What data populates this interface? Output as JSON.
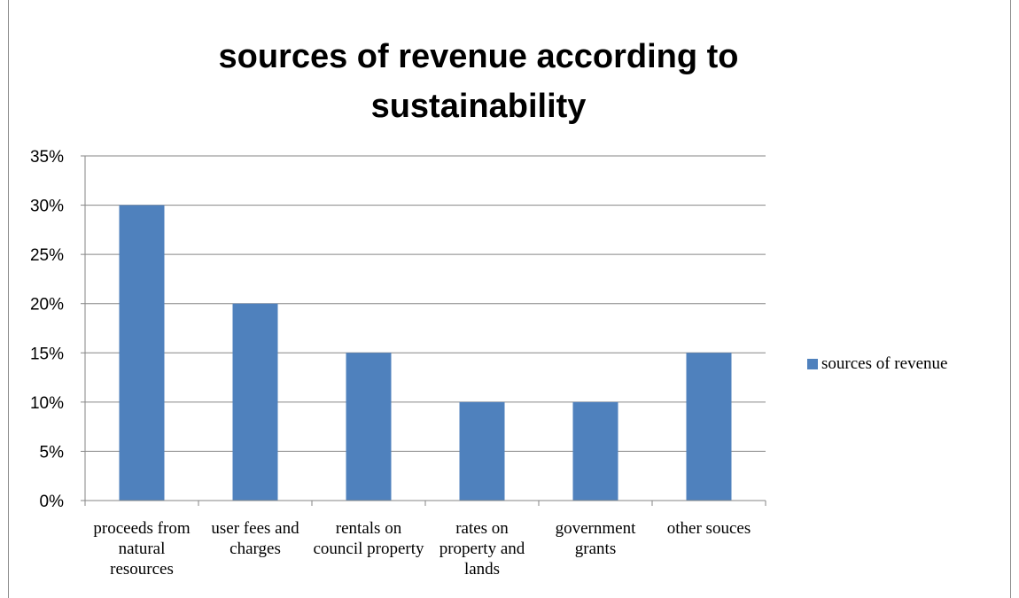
{
  "chart_data": {
    "type": "bar",
    "title": "sources of revenue according to sustainability",
    "categories": [
      "proceeds from natural resources",
      "user fees and charges",
      "rentals on council property",
      "rates  on property and lands",
      "government grants",
      "other  souces"
    ],
    "series": [
      {
        "name": "sources of revenue",
        "values": [
          30,
          20,
          15,
          10,
          10,
          15
        ]
      }
    ],
    "ylim": [
      0,
      35
    ],
    "yticks": [
      "0%",
      "5%",
      "10%",
      "15%",
      "20%",
      "25%",
      "30%",
      "35%"
    ],
    "grid": true,
    "legend": "right",
    "bar_color": "#4f81bd",
    "grid_color": "#868686"
  }
}
